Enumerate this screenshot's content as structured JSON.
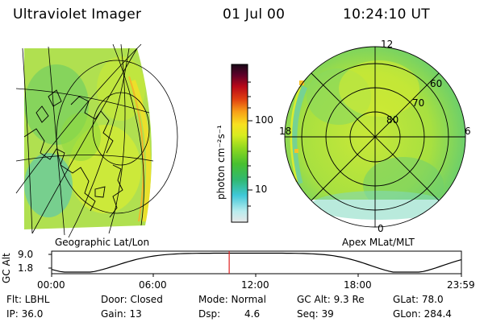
{
  "header": {
    "title": "Ultraviolet Imager",
    "date": "01 Jul 00",
    "time": "10:24:10 UT"
  },
  "colorbar": {
    "unit_label": "photon cm⁻²s⁻¹",
    "ticks": [
      "100",
      "10"
    ]
  },
  "left_panel": {
    "caption": "Geographic Lat/Lon"
  },
  "right_panel": {
    "caption": "Apex MLat/MLT",
    "mlt_labels": [
      "12",
      "18",
      "6",
      "0"
    ],
    "lat_labels": [
      "60",
      "70",
      "80"
    ]
  },
  "altitude_plot": {
    "ylabel": "GC Alt",
    "yticks": [
      "9.0",
      "1.8"
    ],
    "xticks": [
      "00:00",
      "06:00",
      "12:00",
      "18:00",
      "23:59"
    ],
    "current_hour": 10.4,
    "marker_color": "#e02020"
  },
  "info": {
    "row1": {
      "flt": "Flt: LBHL",
      "door": "Door: Closed",
      "mode": "Mode: Normal",
      "gcalt": "GC Alt: 9.3 Re",
      "glat": "GLat:  78.0"
    },
    "row2": {
      "ip": "IP: 36.0",
      "gain": "Gain: 13",
      "dsp_label": "Dsp:",
      "dsp_value": "4.6",
      "seq": "Seq: 39",
      "glon": "GLon: 284.4"
    }
  }
}
